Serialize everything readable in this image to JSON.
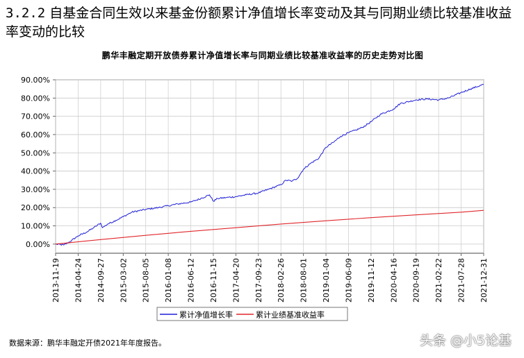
{
  "section": {
    "number": "3.2.2",
    "heading": "自基金合同生效以来基金份额累计净值增长率变动及其与同期业绩比较基准收益率变动的比较"
  },
  "source_note": "数据来源：鹏华丰融定开债2021年年度报告。",
  "watermark": "头条 @小5论基",
  "colors": {
    "fund": "#1f1fd6",
    "benchmark": "#e0262a"
  },
  "chart_data": {
    "type": "line",
    "title": "鹏华丰融定期开放债券累计净值增长率与同期业绩比较基准收益率的历史走势对比图",
    "xlabel": "",
    "ylabel": "",
    "ylim": [
      -5,
      90
    ],
    "ytick_labels": [
      "0.00%",
      "10.00%",
      "20.00%",
      "30.00%",
      "40.00%",
      "50.00%",
      "60.00%",
      "70.00%",
      "80.00%",
      "90.00%"
    ],
    "ytick_values": [
      0,
      10,
      20,
      30,
      40,
      50,
      60,
      70,
      80,
      90
    ],
    "x_tick_labels": [
      "2013-11-19",
      "2014-04-24",
      "2014-09-27",
      "2015-03-02",
      "2015-08-05",
      "2016-01-08",
      "2016-06-12",
      "2016-11-15",
      "2017-04-20",
      "2017-09-23",
      "2018-02-26",
      "2018-08-01",
      "2019-01-04",
      "2019-06-09",
      "2019-11-12",
      "2020-04-16",
      "2020-09-19",
      "2021-02-22",
      "2021-07-28",
      "2021-12-31"
    ],
    "grid": true,
    "legend_position": "bottom",
    "series": [
      {
        "name": "累计净值增长率",
        "x": [
          "2013-11-19",
          "2014-01-15",
          "2014-03-01",
          "2014-04-24",
          "2014-06-20",
          "2014-08-10",
          "2014-09-27",
          "2014-10-10",
          "2014-11-15",
          "2015-01-10",
          "2015-03-02",
          "2015-05-01",
          "2015-08-05",
          "2015-11-01",
          "2016-01-08",
          "2016-03-15",
          "2016-06-12",
          "2016-08-20",
          "2016-10-20",
          "2016-11-15",
          "2016-12-15",
          "2017-02-15",
          "2017-04-20",
          "2017-07-01",
          "2017-09-23",
          "2017-12-01",
          "2018-02-26",
          "2018-04-01",
          "2018-05-15",
          "2018-06-20",
          "2018-08-01",
          "2018-09-15",
          "2018-11-15",
          "2019-01-04",
          "2019-03-01",
          "2019-04-15",
          "2019-06-09",
          "2019-08-01",
          "2019-09-15",
          "2019-11-12",
          "2020-01-15",
          "2020-04-16",
          "2020-06-01",
          "2020-09-19",
          "2020-12-01",
          "2021-02-22",
          "2021-05-01",
          "2021-07-28",
          "2021-10-01",
          "2021-12-31"
        ],
        "y": [
          0,
          -0.5,
          1.5,
          4.5,
          6.5,
          9,
          11.5,
          9,
          11,
          13,
          15,
          17.5,
          19,
          20,
          21,
          22,
          23,
          25,
          27,
          23.5,
          25,
          25.5,
          26,
          27,
          28,
          30,
          32.5,
          35,
          34.5,
          36,
          41,
          44,
          47,
          53,
          56,
          59,
          61,
          62.5,
          64,
          67,
          71,
          74,
          77,
          79,
          79.5,
          79,
          80,
          83,
          85,
          87.5
        ]
      },
      {
        "name": "累计业绩基准收益率",
        "x": [
          "2013-11-19",
          "2014-09-27",
          "2015-08-05",
          "2016-06-12",
          "2017-04-20",
          "2018-02-26",
          "2019-01-04",
          "2019-11-12",
          "2020-09-19",
          "2021-07-28",
          "2021-12-31"
        ],
        "y": [
          0,
          2.5,
          4.8,
          7,
          9,
          11,
          12.8,
          14.5,
          16,
          17.5,
          18.5
        ]
      }
    ]
  }
}
